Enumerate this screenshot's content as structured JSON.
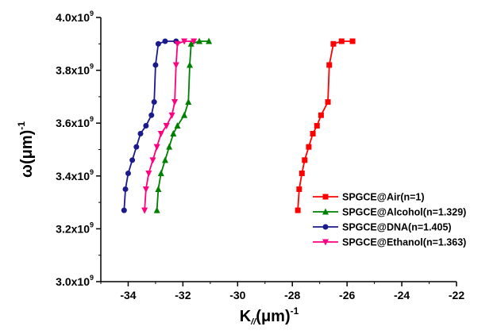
{
  "chart_data": {
    "type": "line",
    "title": "",
    "xlabel": {
      "main": "K",
      "sub": "//",
      "unit": "(μm)",
      "sup": "-1"
    },
    "ylabel": {
      "main": "ω",
      "unit": "(μm)",
      "sup": "-1"
    },
    "xlim": [
      -35,
      -22
    ],
    "ylim": [
      3000000000.0,
      4000000000.0
    ],
    "x_ticks": [
      -34,
      -32,
      -30,
      -28,
      -26,
      -24,
      -22
    ],
    "y_ticks": [
      {
        "value": 3000000000.0,
        "mantissa": "3.0x10",
        "exp": "9"
      },
      {
        "value": 3200000000.0,
        "mantissa": "3.2x10",
        "exp": "9"
      },
      {
        "value": 3400000000.0,
        "mantissa": "3.4x10",
        "exp": "9"
      },
      {
        "value": 3600000000.0,
        "mantissa": "3.6x10",
        "exp": "9"
      },
      {
        "value": 3800000000.0,
        "mantissa": "3.8x10",
        "exp": "9"
      },
      {
        "value": 4000000000.0,
        "mantissa": "4.0x10",
        "exp": "9"
      }
    ],
    "grid": false,
    "legend_position": "lower-right",
    "series": [
      {
        "name": "SPGCE@Air(n=1)",
        "color": "#ff0000",
        "marker": "square",
        "points": [
          [
            -27.8,
            3270000000.0
          ],
          [
            -27.75,
            3350000000.0
          ],
          [
            -27.65,
            3410000000.0
          ],
          [
            -27.55,
            3460000000.0
          ],
          [
            -27.4,
            3510000000.0
          ],
          [
            -27.25,
            3560000000.0
          ],
          [
            -27.1,
            3590000000.0
          ],
          [
            -26.95,
            3630000000.0
          ],
          [
            -26.7,
            3680000000.0
          ],
          [
            -26.65,
            3820000000.0
          ],
          [
            -26.5,
            3900000000.0
          ],
          [
            -26.2,
            3910000000.0
          ],
          [
            -25.8,
            3910000000.0
          ]
        ]
      },
      {
        "name": "SPGCE@Alcohol(n=1.329)",
        "color": "#008000",
        "marker": "triangle-up",
        "points": [
          [
            -32.95,
            3270000000.0
          ],
          [
            -32.9,
            3350000000.0
          ],
          [
            -32.8,
            3410000000.0
          ],
          [
            -32.65,
            3460000000.0
          ],
          [
            -32.5,
            3510000000.0
          ],
          [
            -32.35,
            3560000000.0
          ],
          [
            -32.2,
            3590000000.0
          ],
          [
            -31.95,
            3630000000.0
          ],
          [
            -31.8,
            3680000000.0
          ],
          [
            -31.75,
            3820000000.0
          ],
          [
            -31.7,
            3900000000.0
          ],
          [
            -31.4,
            3910000000.0
          ],
          [
            -31.05,
            3910000000.0
          ]
        ]
      },
      {
        "name": "SPGCE@DNA(n=1.405)",
        "color": "#1a1a8c",
        "marker": "circle",
        "points": [
          [
            -34.15,
            3270000000.0
          ],
          [
            -34.1,
            3350000000.0
          ],
          [
            -34.0,
            3410000000.0
          ],
          [
            -33.85,
            3460000000.0
          ],
          [
            -33.7,
            3510000000.0
          ],
          [
            -33.55,
            3560000000.0
          ],
          [
            -33.35,
            3590000000.0
          ],
          [
            -33.15,
            3630000000.0
          ],
          [
            -33.05,
            3680000000.0
          ],
          [
            -33.0,
            3820000000.0
          ],
          [
            -32.9,
            3900000000.0
          ],
          [
            -32.65,
            3910000000.0
          ],
          [
            -32.25,
            3910000000.0
          ]
        ]
      },
      {
        "name": "SPGCE@Ethanol(n=1.363)",
        "color": "#ff0080",
        "marker": "triangle-down",
        "points": [
          [
            -33.4,
            3270000000.0
          ],
          [
            -33.35,
            3350000000.0
          ],
          [
            -33.25,
            3410000000.0
          ],
          [
            -33.1,
            3460000000.0
          ],
          [
            -32.95,
            3510000000.0
          ],
          [
            -32.8,
            3560000000.0
          ],
          [
            -32.6,
            3590000000.0
          ],
          [
            -32.4,
            3630000000.0
          ],
          [
            -32.3,
            3680000000.0
          ],
          [
            -32.25,
            3820000000.0
          ],
          [
            -32.2,
            3900000000.0
          ],
          [
            -31.95,
            3910000000.0
          ],
          [
            -31.6,
            3910000000.0
          ]
        ]
      }
    ]
  }
}
